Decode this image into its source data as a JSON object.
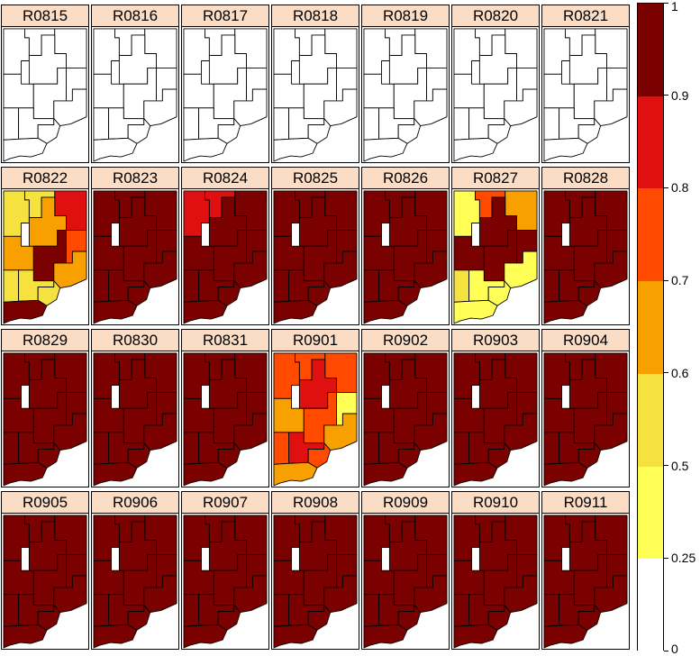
{
  "panels": [
    {
      "label": "R0815",
      "fills": [
        "w",
        "w",
        "w",
        "w",
        "w",
        "w",
        "w",
        "w",
        "w",
        "w",
        "w",
        "w"
      ]
    },
    {
      "label": "R0816",
      "fills": [
        "w",
        "w",
        "w",
        "w",
        "w",
        "w",
        "w",
        "w",
        "w",
        "w",
        "w",
        "w"
      ]
    },
    {
      "label": "R0817",
      "fills": [
        "w",
        "w",
        "w",
        "w",
        "w",
        "w",
        "w",
        "w",
        "w",
        "w",
        "w",
        "w"
      ]
    },
    {
      "label": "R0818",
      "fills": [
        "w",
        "w",
        "w",
        "w",
        "w",
        "w",
        "w",
        "w",
        "w",
        "w",
        "w",
        "w"
      ]
    },
    {
      "label": "R0819",
      "fills": [
        "w",
        "w",
        "w",
        "w",
        "w",
        "w",
        "w",
        "w",
        "w",
        "w",
        "w",
        "w"
      ]
    },
    {
      "label": "R0820",
      "fills": [
        "w",
        "w",
        "w",
        "w",
        "w",
        "w",
        "w",
        "w",
        "w",
        "w",
        "w",
        "w"
      ]
    },
    {
      "label": "R0821",
      "fills": [
        "w",
        "w",
        "w",
        "w",
        "w",
        "w",
        "w",
        "w",
        "w",
        "w",
        "w",
        "w"
      ]
    },
    {
      "label": "R0822",
      "fills": [
        "y",
        "y",
        "r",
        "o",
        "o",
        "dr",
        "or",
        "o",
        "y",
        "y",
        "y",
        "dr"
      ]
    },
    {
      "label": "R0823",
      "fills": [
        "dr",
        "dr",
        "dr",
        "dr",
        "dr",
        "dr",
        "dr",
        "dr",
        "dr",
        "dr",
        "dr",
        "dr"
      ]
    },
    {
      "label": "R0824",
      "fills": [
        "r",
        "r",
        "dr",
        "dr",
        "dr",
        "dr",
        "dr",
        "dr",
        "dr",
        "dr",
        "dr",
        "dr"
      ]
    },
    {
      "label": "R0825",
      "fills": [
        "dr",
        "dr",
        "dr",
        "dr",
        "dr",
        "dr",
        "dr",
        "dr",
        "dr",
        "dr",
        "dr",
        "dr"
      ]
    },
    {
      "label": "R0826",
      "fills": [
        "dr",
        "dr",
        "dr",
        "dr",
        "dr",
        "dr",
        "dr",
        "dr",
        "dr",
        "dr",
        "dr",
        "dr"
      ]
    },
    {
      "label": "R0827",
      "fills": [
        "ly",
        "or",
        "o",
        "dr",
        "dr",
        "dr",
        "dr",
        "ly",
        "y",
        "ly",
        "ly",
        "ly"
      ]
    },
    {
      "label": "R0828",
      "fills": [
        "dr",
        "dr",
        "dr",
        "dr",
        "dr",
        "dr",
        "dr",
        "dr",
        "dr",
        "dr",
        "dr",
        "dr"
      ]
    },
    {
      "label": "R0829",
      "fills": [
        "dr",
        "dr",
        "dr",
        "dr",
        "dr",
        "dr",
        "dr",
        "dr",
        "dr",
        "dr",
        "dr",
        "dr"
      ]
    },
    {
      "label": "R0830",
      "fills": [
        "dr",
        "dr",
        "dr",
        "dr",
        "dr",
        "dr",
        "dr",
        "dr",
        "dr",
        "dr",
        "dr",
        "dr"
      ]
    },
    {
      "label": "R0831",
      "fills": [
        "dr",
        "dr",
        "dr",
        "dr",
        "dr",
        "dr",
        "dr",
        "dr",
        "dr",
        "dr",
        "dr",
        "dr"
      ]
    },
    {
      "label": "R0901",
      "fills": [
        "or",
        "or",
        "or",
        "o",
        "r",
        "or",
        "ly",
        "o",
        "or",
        "r",
        "or",
        "o"
      ]
    },
    {
      "label": "R0902",
      "fills": [
        "dr",
        "dr",
        "dr",
        "dr",
        "dr",
        "dr",
        "dr",
        "dr",
        "dr",
        "dr",
        "dr",
        "dr"
      ]
    },
    {
      "label": "R0903",
      "fills": [
        "dr",
        "dr",
        "dr",
        "dr",
        "dr",
        "dr",
        "dr",
        "dr",
        "dr",
        "dr",
        "dr",
        "dr"
      ]
    },
    {
      "label": "R0904",
      "fills": [
        "dr",
        "dr",
        "dr",
        "dr",
        "dr",
        "dr",
        "dr",
        "dr",
        "dr",
        "dr",
        "dr",
        "dr"
      ]
    },
    {
      "label": "R0905",
      "fills": [
        "dr",
        "dr",
        "dr",
        "dr",
        "dr",
        "dr",
        "dr",
        "dr",
        "dr",
        "dr",
        "dr",
        "dr"
      ]
    },
    {
      "label": "R0906",
      "fills": [
        "dr",
        "dr",
        "dr",
        "dr",
        "dr",
        "dr",
        "dr",
        "dr",
        "dr",
        "dr",
        "dr",
        "dr"
      ]
    },
    {
      "label": "R0907",
      "fills": [
        "dr",
        "dr",
        "dr",
        "dr",
        "dr",
        "dr",
        "dr",
        "dr",
        "dr",
        "dr",
        "dr",
        "dr"
      ]
    },
    {
      "label": "R0908",
      "fills": [
        "dr",
        "dr",
        "dr",
        "dr",
        "dr",
        "dr",
        "dr",
        "dr",
        "dr",
        "dr",
        "dr",
        "dr"
      ]
    },
    {
      "label": "R0909",
      "fills": [
        "dr",
        "dr",
        "dr",
        "dr",
        "dr",
        "dr",
        "dr",
        "dr",
        "dr",
        "dr",
        "dr",
        "dr"
      ]
    },
    {
      "label": "R0910",
      "fills": [
        "dr",
        "dr",
        "dr",
        "dr",
        "dr",
        "dr",
        "dr",
        "dr",
        "dr",
        "dr",
        "dr",
        "dr"
      ]
    },
    {
      "label": "R0911",
      "fills": [
        "dr",
        "dr",
        "dr",
        "dr",
        "dr",
        "dr",
        "dr",
        "dr",
        "dr",
        "dr",
        "dr",
        "dr"
      ]
    }
  ],
  "palette": {
    "w": "#ffffff",
    "ly": "#ffff55",
    "y": "#f6e23e",
    "o": "#f7a000",
    "or": "#ff4a00",
    "r": "#e01010",
    "dr": "#7b0000"
  },
  "legend": {
    "bands": [
      {
        "from": 0,
        "to": 0.25,
        "color": "#ffffff"
      },
      {
        "from": 0.25,
        "to": 0.5,
        "color": "#ffff55"
      },
      {
        "from": 0.5,
        "to": 0.6,
        "color": "#f6e23e"
      },
      {
        "from": 0.6,
        "to": 0.7,
        "color": "#f7a000"
      },
      {
        "from": 0.7,
        "to": 0.8,
        "color": "#ff4a00"
      },
      {
        "from": 0.8,
        "to": 0.9,
        "color": "#e01010"
      },
      {
        "from": 0.9,
        "to": 1,
        "color": "#7b0000"
      }
    ],
    "ticks": [
      "0",
      "0.25",
      "0.5",
      "0.6",
      "0.7",
      "0.8",
      "0.9",
      "1"
    ]
  }
}
